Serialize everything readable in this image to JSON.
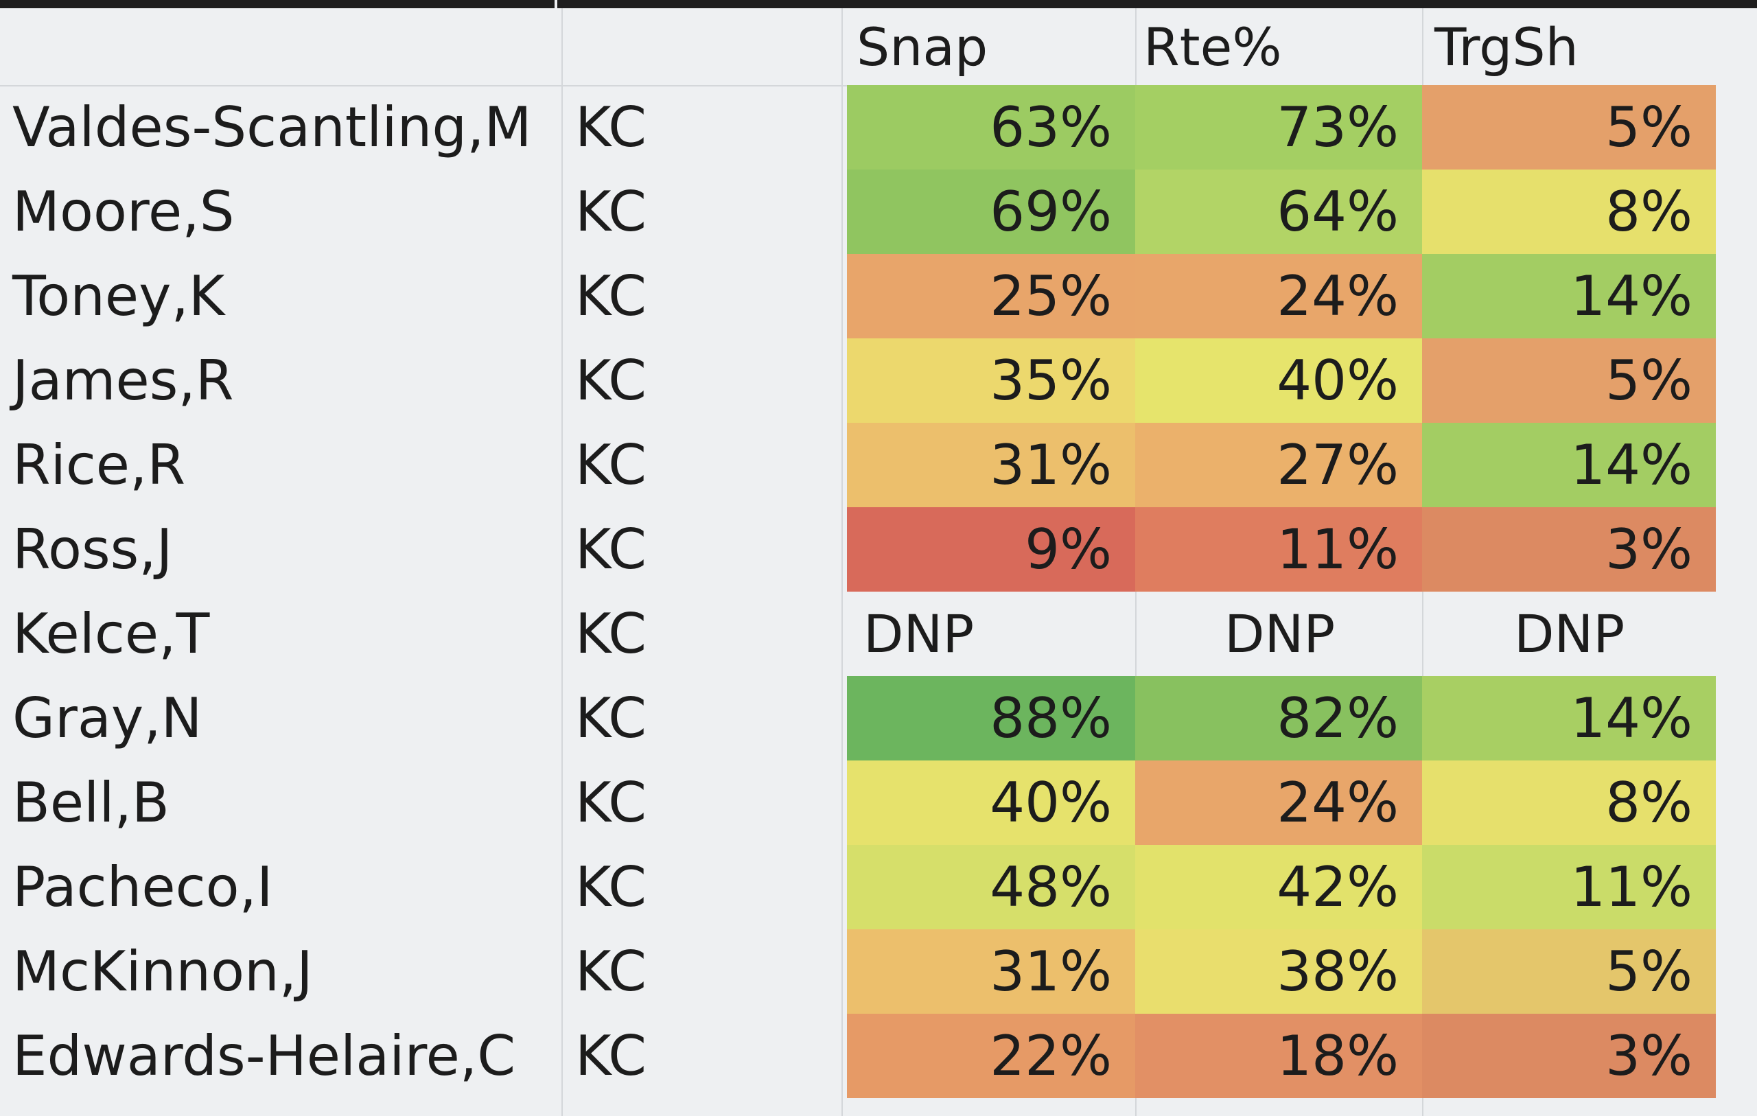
{
  "columns": {
    "snap": "Snap",
    "rte": "Rte%",
    "trgsh": "TrgSh"
  },
  "rows": [
    {
      "name": "Valdes-Scantling,M",
      "team": "KC",
      "snap": "63%",
      "rte": "73%",
      "trgsh": "5%",
      "colors": {
        "snap": "#9ccb62",
        "rte": "#a4cf63",
        "trgsh": "#e4a06a"
      }
    },
    {
      "name": "Moore,S",
      "team": "KC",
      "snap": "69%",
      "rte": "64%",
      "trgsh": "8%",
      "colors": {
        "snap": "#90c560",
        "rte": "#b2d466",
        "trgsh": "#e6e06c"
      }
    },
    {
      "name": "Toney,K",
      "team": "KC",
      "snap": "25%",
      "rte": "24%",
      "trgsh": "14%",
      "colors": {
        "snap": "#e8a56a",
        "rte": "#e8a66a",
        "trgsh": "#a3cd63"
      }
    },
    {
      "name": "James,R",
      "team": "KC",
      "snap": "35%",
      "rte": "40%",
      "trgsh": "5%",
      "colors": {
        "snap": "#ecd86d",
        "rte": "#e6e46c",
        "trgsh": "#e4a06a"
      }
    },
    {
      "name": "Rice,R",
      "team": "KC",
      "snap": "31%",
      "rte": "27%",
      "trgsh": "14%",
      "colors": {
        "snap": "#ecbf6c",
        "rte": "#ebb16b",
        "trgsh": "#a3cd63"
      }
    },
    {
      "name": "Ross,J",
      "team": "KC",
      "snap": "9%",
      "rte": "11%",
      "trgsh": "3%",
      "colors": {
        "snap": "#d86a5a",
        "rte": "#df7d5f",
        "trgsh": "#dc8a62"
      }
    },
    {
      "name": "Kelce,T",
      "team": "KC",
      "dnp": [
        "DNP",
        "DNP",
        "DNP"
      ]
    },
    {
      "name": "Gray,N",
      "team": "KC",
      "snap": "88%",
      "rte": "82%",
      "trgsh": "14%",
      "colors": {
        "snap": "#6cb55e",
        "rte": "#88c15f",
        "trgsh": "#a8cf63"
      }
    },
    {
      "name": "Bell,B",
      "team": "KC",
      "snap": "40%",
      "rte": "24%",
      "trgsh": "8%",
      "colors": {
        "snap": "#e6e26c",
        "rte": "#e8a66a",
        "trgsh": "#e6e06c"
      }
    },
    {
      "name": "Pacheco,I",
      "team": "KC",
      "snap": "48%",
      "rte": "42%",
      "trgsh": "11%",
      "colors": {
        "snap": "#d6df6a",
        "rte": "#e2e26b",
        "trgsh": "#cadc69"
      }
    },
    {
      "name": "McKinnon,J",
      "team": "KC",
      "snap": "31%",
      "rte": "38%",
      "trgsh": "5%",
      "colors": {
        "snap": "#ecbf6c",
        "rte": "#e9de6d",
        "trgsh": "#e4c66b"
      }
    },
    {
      "name": "Edwards-Helaire,C",
      "team": "KC",
      "snap": "22%",
      "rte": "18%",
      "trgsh": "3%",
      "colors": {
        "snap": "#e69a66",
        "rte": "#e29065",
        "trgsh": "#dc8a62"
      }
    }
  ]
}
